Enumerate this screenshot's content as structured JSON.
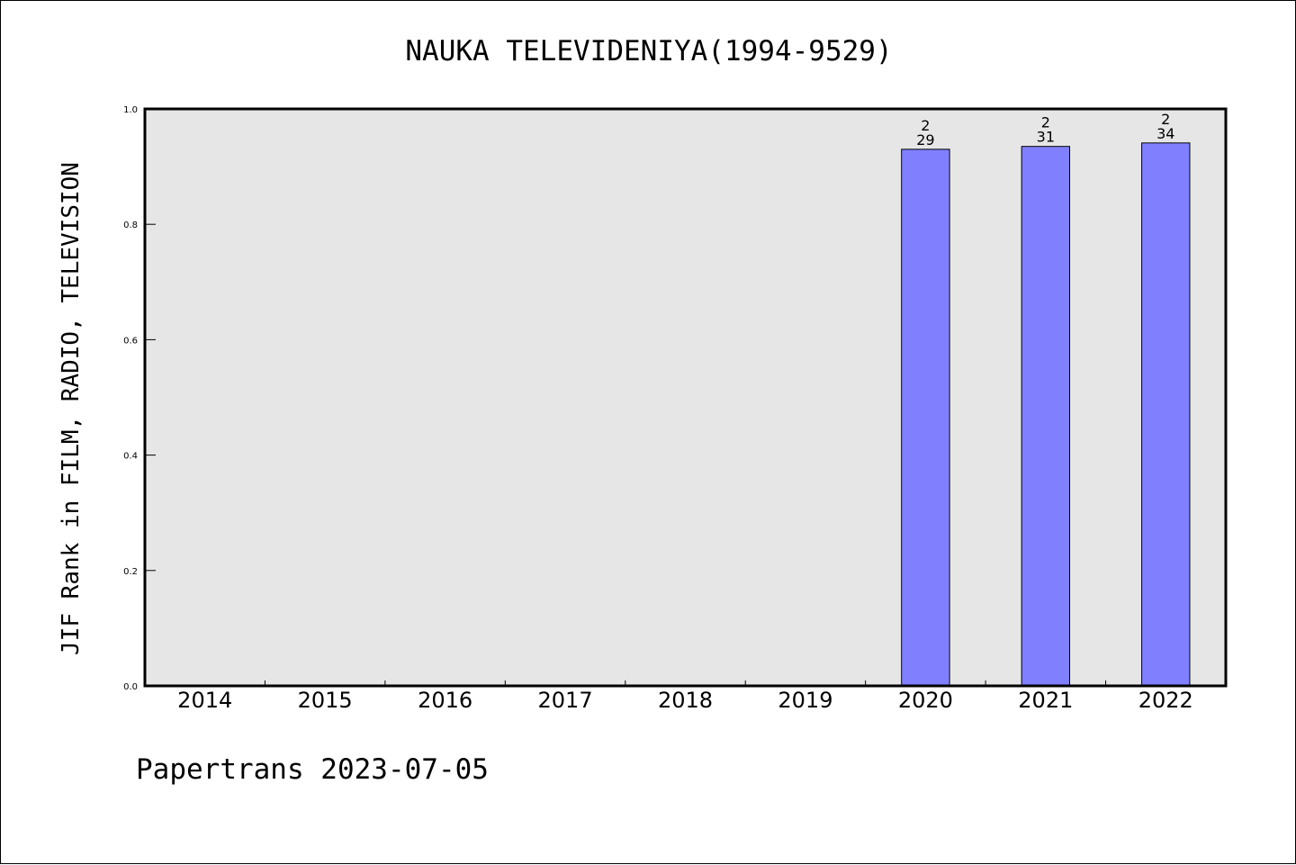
{
  "chart_data": {
    "type": "bar",
    "title": "NAUKA TELEVIDENIYA(1994-9529)",
    "ylabel": "JIF Rank in FILM, RADIO, TELEVISION",
    "xlabel": "",
    "categories": [
      "2014",
      "2015",
      "2016",
      "2017",
      "2018",
      "2019",
      "2020",
      "2021",
      "2022"
    ],
    "values": [
      null,
      null,
      null,
      null,
      null,
      null,
      0.93,
      0.935,
      0.941
    ],
    "bar_labels": [
      {
        "category": "2020",
        "rank": "2",
        "total": "29"
      },
      {
        "category": "2021",
        "rank": "2",
        "total": "31"
      },
      {
        "category": "2022",
        "rank": "2",
        "total": "34"
      }
    ],
    "ylim": [
      0,
      1.0
    ],
    "yticks": [
      "0.0",
      "0.2",
      "0.4",
      "0.6",
      "0.8",
      "1.0"
    ],
    "grid": false,
    "legend": "none",
    "colors": {
      "bar_fill": "#8080ff",
      "bar_stroke": "#000000",
      "plot_background": "#e6e6e6",
      "axis": "#000000"
    }
  },
  "footer": {
    "credit": "Papertrans 2023-07-05"
  }
}
